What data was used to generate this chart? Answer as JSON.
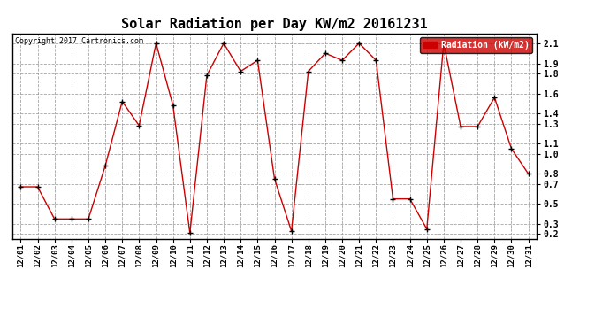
{
  "title": "Solar Radiation per Day KW/m2 20161231",
  "copyright": "Copyright 2017 Cartronics.com",
  "legend_label": "Radiation (kW/m2)",
  "dates": [
    "12/01",
    "12/02",
    "12/03",
    "12/04",
    "12/05",
    "12/06",
    "12/07",
    "12/08",
    "12/09",
    "12/10",
    "12/11",
    "12/12",
    "12/13",
    "12/14",
    "12/15",
    "12/16",
    "12/17",
    "12/18",
    "12/19",
    "12/20",
    "12/21",
    "12/22",
    "12/23",
    "12/24",
    "12/25",
    "12/26",
    "12/27",
    "12/28",
    "12/29",
    "12/30",
    "12/31"
  ],
  "values": [
    0.67,
    0.67,
    0.35,
    0.35,
    0.35,
    0.88,
    1.52,
    1.28,
    2.1,
    1.48,
    0.21,
    1.78,
    2.1,
    1.82,
    1.93,
    0.75,
    0.23,
    1.82,
    2.0,
    1.93,
    2.1,
    1.93,
    0.55,
    0.55,
    0.25,
    2.1,
    1.27,
    1.27,
    1.56,
    1.05,
    0.8
  ],
  "line_color": "#cc0000",
  "marker_color": "#000000",
  "bg_color": "#ffffff",
  "grid_color": "#999999",
  "ylim": [
    0.15,
    2.2
  ],
  "yticks": [
    0.2,
    0.3,
    0.5,
    0.7,
    0.8,
    1.0,
    1.1,
    1.3,
    1.4,
    1.6,
    1.8,
    1.9,
    2.1
  ],
  "legend_bg": "#cc0000",
  "legend_text_color": "#ffffff",
  "fig_width": 6.9,
  "fig_height": 3.75,
  "dpi": 100
}
